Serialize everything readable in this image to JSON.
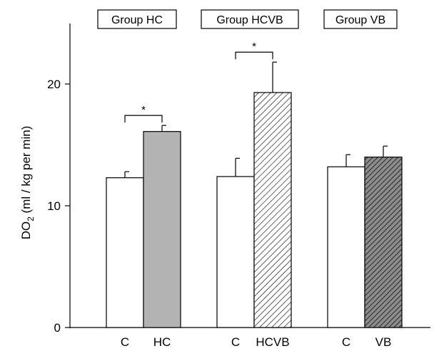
{
  "chart_data": {
    "type": "bar",
    "ylabel": "DO",
    "ylabel_sub": "2",
    "ylabel_unit": " (ml / kg per min)",
    "ylim": [
      0,
      25
    ],
    "yticks": [
      0,
      10,
      20
    ],
    "grid": false,
    "significance_marker": "*",
    "groups": [
      {
        "name": "Group HC",
        "bars": [
          {
            "label": "C",
            "value": 12.3,
            "error": 0.5,
            "fill": "white"
          },
          {
            "label": "HC",
            "value": 16.1,
            "error": 0.5,
            "fill": "gray"
          }
        ],
        "significant": true
      },
      {
        "name": "Group HCVB",
        "bars": [
          {
            "label": "C",
            "value": 12.4,
            "error": 1.5,
            "fill": "white"
          },
          {
            "label": "HCVB",
            "value": 19.3,
            "error": 2.5,
            "fill": "light-hatch"
          }
        ],
        "significant": true
      },
      {
        "name": "Group VB",
        "bars": [
          {
            "label": "C",
            "value": 13.2,
            "error": 1.0,
            "fill": "white"
          },
          {
            "label": "VB",
            "value": 14.0,
            "error": 0.9,
            "fill": "dark-hatch"
          }
        ],
        "significant": false
      }
    ]
  },
  "colors": {
    "gray_fill": "#b3b3b3",
    "dark_hatch_bg": "#8c8c8c",
    "line": "#000000"
  }
}
